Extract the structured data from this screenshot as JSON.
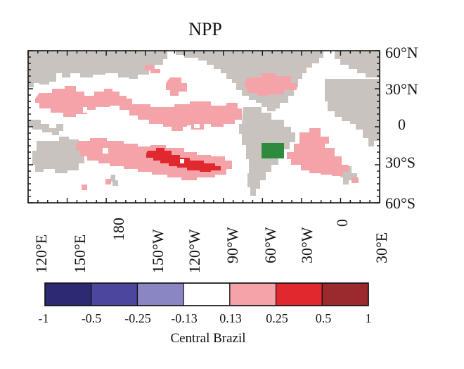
{
  "figure": {
    "title": "NPP",
    "colorbar_label": "Central Brazil"
  },
  "map": {
    "lat_ticks": [
      "60°N",
      "30°N",
      "0",
      "30°S",
      "60°S"
    ],
    "lon_ticks": [
      "120°E",
      "150°E",
      "180",
      "150°W",
      "120°W",
      "90°W",
      "60°W",
      "30°W",
      "0",
      "30°E"
    ]
  },
  "colorbar": {
    "tick_labels": [
      "-1",
      "-0.5",
      "-0.25",
      "-0.13",
      "0.13",
      "0.25",
      "0.5",
      "1"
    ],
    "colors": [
      "#2d2a74",
      "#4b479e",
      "#8a86c4",
      "#ffffff",
      "#f4a4a8",
      "#e0282e",
      "#9b2a2e"
    ]
  },
  "colors": {
    "land": "#c8c3bf",
    "positive_weak": "#f4a4a8",
    "positive_strong": "#e0282e",
    "region_box": "#2e8b3e"
  }
}
